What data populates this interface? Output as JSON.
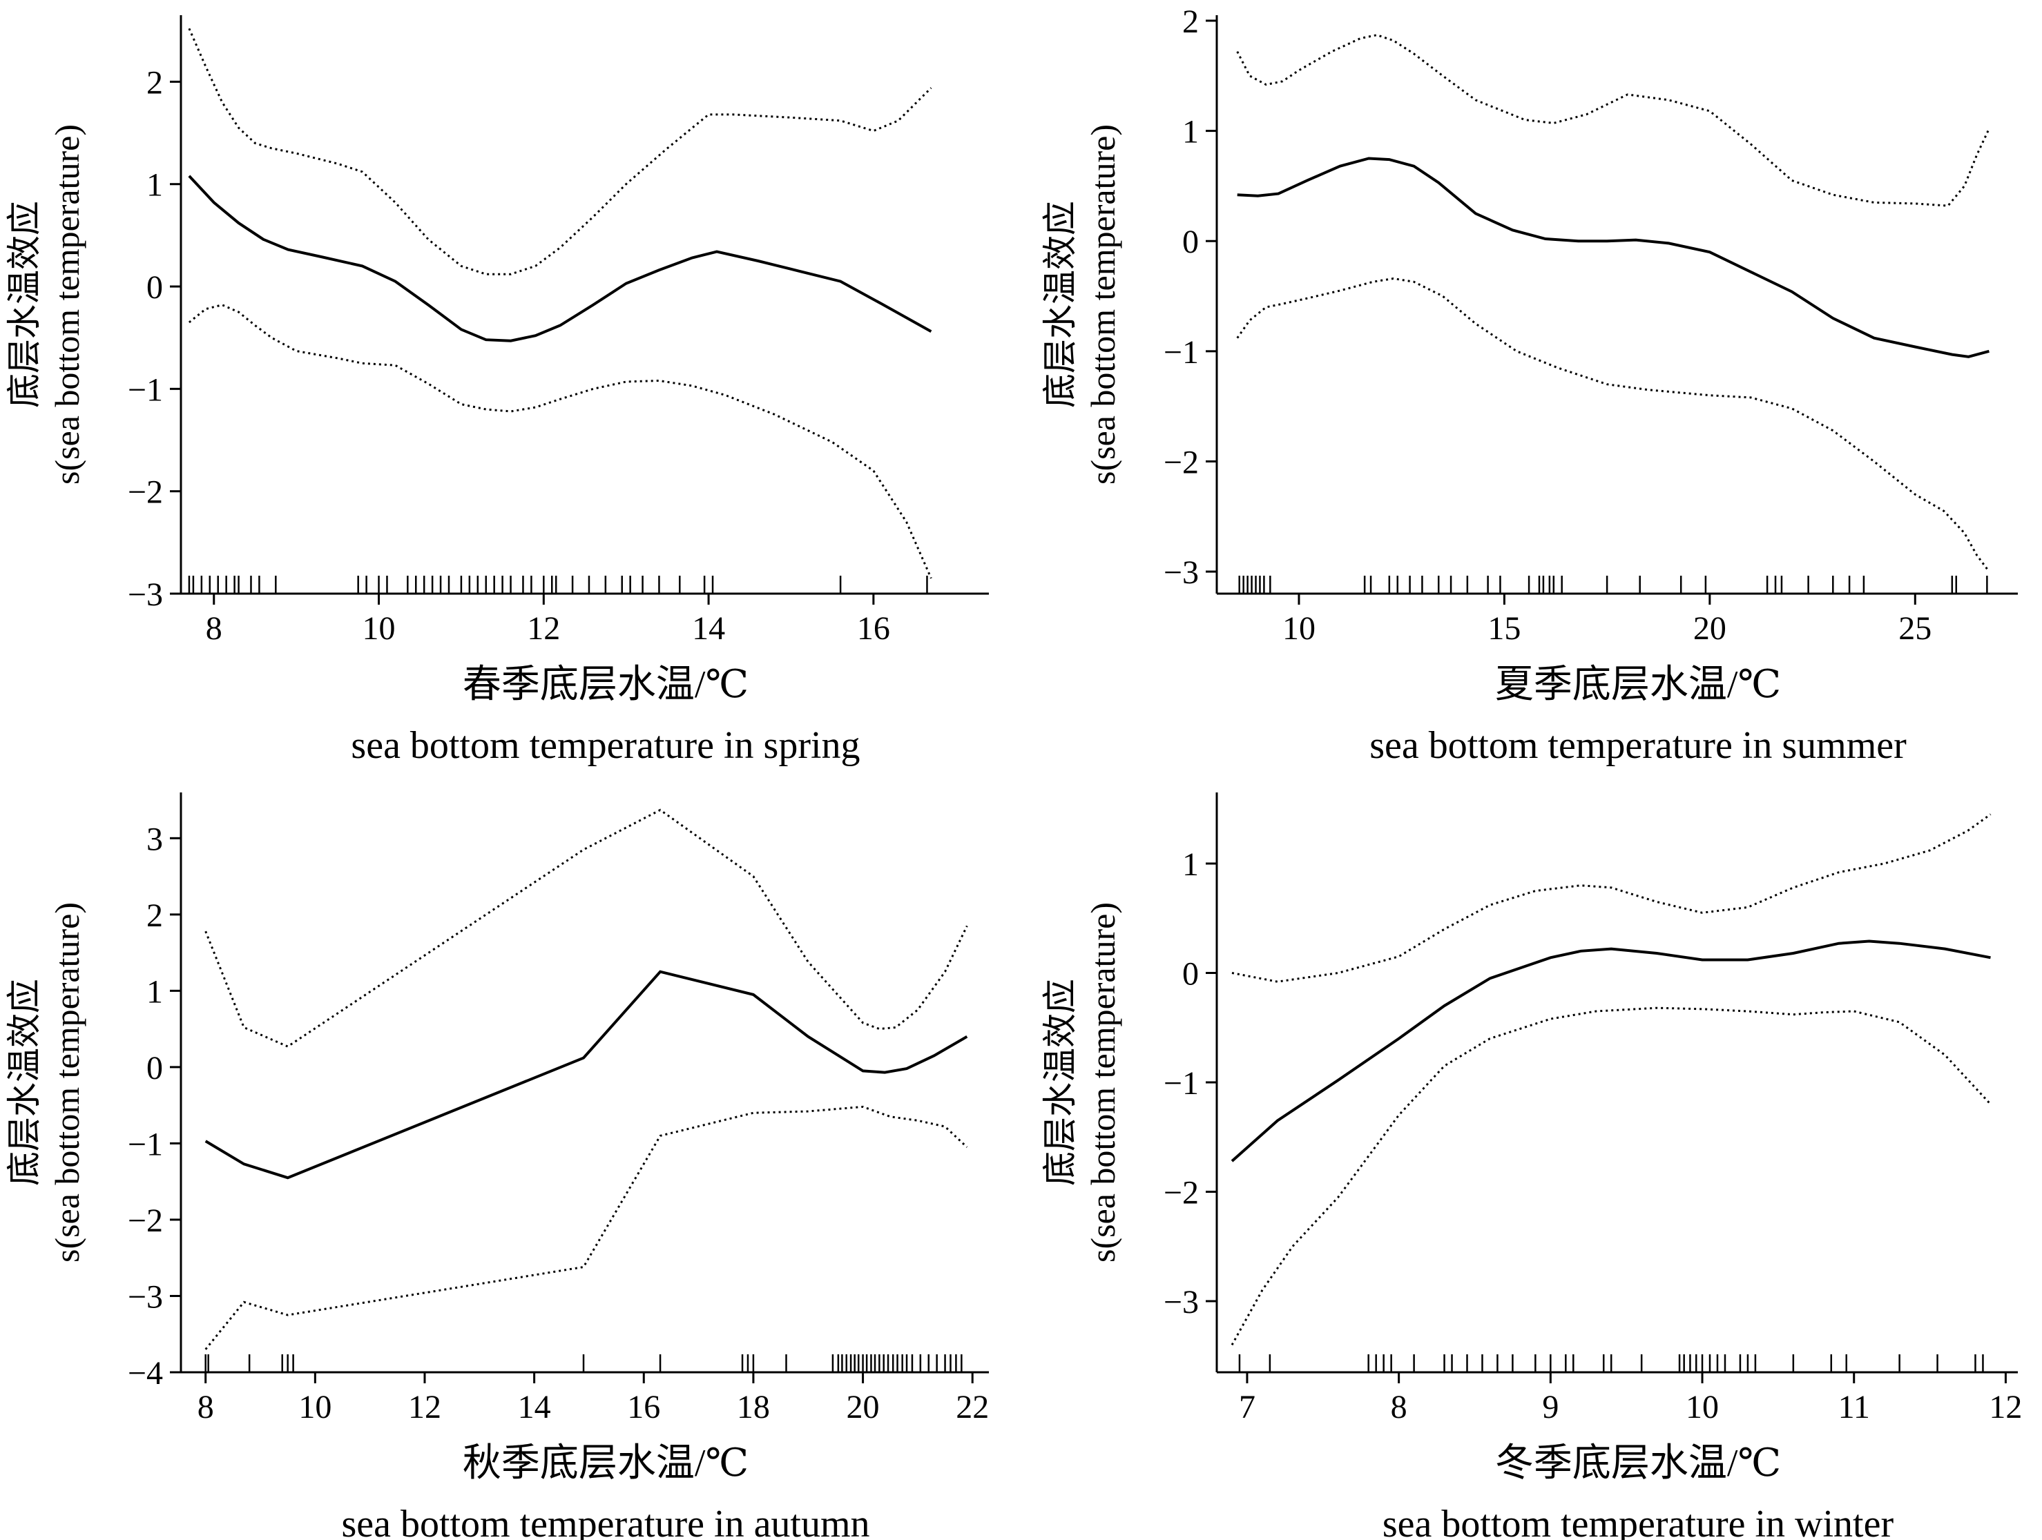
{
  "chart_data": [
    {
      "id": "spring",
      "type": "line",
      "xlabel_cn": "春季底层水温/℃",
      "xlabel_en": "sea bottom temperature in spring",
      "ylabel_cn": "底层水温效应",
      "ylabel_en": "s(sea bottom temperature)",
      "xlim": [
        7.6,
        17.4
      ],
      "ylim": [
        -3,
        2.65
      ],
      "xticks": [
        8,
        10,
        12,
        14,
        16
      ],
      "yticks": [
        -3,
        -2,
        -1,
        0,
        1,
        2
      ],
      "rug": [
        7.7,
        7.75,
        7.85,
        7.95,
        8.05,
        8.15,
        8.25,
        8.3,
        8.45,
        8.55,
        8.75,
        9.75,
        9.85,
        10.0,
        10.1,
        10.35,
        10.45,
        10.55,
        10.65,
        10.75,
        10.85,
        11.0,
        11.1,
        11.2,
        11.3,
        11.4,
        11.5,
        11.6,
        11.75,
        11.85,
        12.0,
        12.1,
        12.15,
        12.35,
        12.55,
        12.75,
        12.95,
        13.05,
        13.2,
        13.4,
        13.65,
        13.95,
        14.05,
        15.6,
        16.65
      ],
      "series": [
        {
          "style": "solid",
          "x": [
            7.7,
            8.0,
            8.3,
            8.6,
            8.9,
            9.3,
            9.8,
            10.2,
            10.6,
            11.0,
            11.3,
            11.6,
            11.9,
            12.2,
            12.6,
            13.0,
            13.4,
            13.8,
            14.1,
            14.6,
            15.1,
            15.6,
            16.1,
            16.7
          ],
          "y": [
            1.08,
            0.82,
            0.62,
            0.46,
            0.36,
            0.29,
            0.2,
            0.05,
            -0.18,
            -0.42,
            -0.52,
            -0.53,
            -0.48,
            -0.38,
            -0.18,
            0.03,
            0.16,
            0.28,
            0.34,
            0.25,
            0.15,
            0.05,
            -0.17,
            -0.44
          ]
        },
        {
          "style": "dotted",
          "x": [
            7.7,
            7.9,
            8.1,
            8.3,
            8.5,
            8.7,
            9.0,
            9.5,
            9.8,
            10.2,
            10.6,
            11.0,
            11.3,
            11.6,
            11.9,
            12.2,
            12.6,
            13.0,
            13.5,
            14.0,
            14.3,
            15.0,
            15.6,
            16.0,
            16.3,
            16.7
          ],
          "y": [
            2.52,
            2.15,
            1.8,
            1.55,
            1.4,
            1.35,
            1.3,
            1.2,
            1.12,
            0.82,
            0.46,
            0.2,
            0.12,
            0.12,
            0.2,
            0.38,
            0.68,
            1.0,
            1.35,
            1.68,
            1.68,
            1.65,
            1.62,
            1.52,
            1.62,
            1.94
          ]
        },
        {
          "style": "dotted",
          "x": [
            7.7,
            7.9,
            8.1,
            8.3,
            8.5,
            8.7,
            9.0,
            9.5,
            9.8,
            10.2,
            10.6,
            11.0,
            11.3,
            11.6,
            11.9,
            12.2,
            12.6,
            13.0,
            13.4,
            13.8,
            14.2,
            14.8,
            15.5,
            16.0,
            16.4,
            16.7
          ],
          "y": [
            -0.35,
            -0.22,
            -0.18,
            -0.25,
            -0.38,
            -0.5,
            -0.63,
            -0.7,
            -0.75,
            -0.77,
            -0.95,
            -1.15,
            -1.2,
            -1.22,
            -1.18,
            -1.1,
            -1.0,
            -0.93,
            -0.92,
            -0.97,
            -1.06,
            -1.25,
            -1.52,
            -1.8,
            -2.3,
            -2.85
          ]
        }
      ]
    },
    {
      "id": "summer",
      "type": "line",
      "xlabel_cn": "夏季底层水温/℃",
      "xlabel_en": "sea bottom temperature in summer",
      "ylabel_cn": "底层水温效应",
      "ylabel_en": "s(sea bottom temperature)",
      "xlim": [
        8.0,
        27.5
      ],
      "ylim": [
        -3.2,
        2.05
      ],
      "xticks": [
        10,
        15,
        20,
        25
      ],
      "yticks": [
        -3,
        -2,
        -1,
        0,
        1,
        2
      ],
      "rug": [
        8.55,
        8.65,
        8.75,
        8.85,
        8.95,
        9.05,
        9.15,
        9.3,
        11.6,
        11.75,
        12.2,
        12.4,
        12.7,
        13.0,
        13.4,
        13.7,
        14.1,
        14.6,
        14.9,
        15.6,
        15.85,
        15.95,
        16.1,
        16.2,
        16.4,
        17.5,
        18.3,
        19.3,
        19.9,
        21.4,
        21.6,
        21.75,
        22.4,
        23.0,
        23.4,
        23.75,
        25.9,
        26.0,
        26.75
      ],
      "series": [
        {
          "style": "solid",
          "x": [
            8.5,
            9.0,
            9.5,
            10.2,
            11.0,
            11.7,
            12.2,
            12.8,
            13.4,
            14.3,
            15.2,
            16.0,
            16.8,
            17.5,
            18.2,
            19.0,
            20.0,
            21.0,
            22.0,
            23.0,
            24.0,
            25.0,
            25.9,
            26.3,
            26.8
          ],
          "y": [
            0.42,
            0.41,
            0.43,
            0.55,
            0.68,
            0.75,
            0.74,
            0.68,
            0.53,
            0.25,
            0.1,
            0.02,
            0.0,
            0.0,
            0.01,
            -0.02,
            -0.1,
            -0.28,
            -0.46,
            -0.7,
            -0.88,
            -0.96,
            -1.03,
            -1.05,
            -1.0
          ]
        },
        {
          "style": "dotted",
          "x": [
            8.5,
            8.8,
            9.2,
            9.6,
            10.0,
            10.8,
            11.5,
            11.9,
            12.3,
            12.8,
            13.5,
            14.3,
            15.5,
            16.2,
            17.0,
            18.0,
            19.0,
            20.0,
            21.0,
            22.0,
            23.0,
            24.0,
            25.0,
            25.8,
            26.2,
            26.5,
            26.8
          ],
          "y": [
            1.72,
            1.5,
            1.42,
            1.45,
            1.55,
            1.72,
            1.84,
            1.87,
            1.82,
            1.7,
            1.5,
            1.28,
            1.1,
            1.07,
            1.15,
            1.33,
            1.28,
            1.18,
            0.88,
            0.55,
            0.42,
            0.35,
            0.34,
            0.32,
            0.5,
            0.78,
            1.02
          ]
        },
        {
          "style": "dotted",
          "x": [
            8.5,
            8.8,
            9.2,
            9.6,
            10.2,
            11.0,
            11.8,
            12.3,
            12.8,
            13.5,
            14.3,
            15.3,
            16.3,
            17.5,
            18.5,
            20.0,
            21.0,
            22.0,
            23.0,
            24.0,
            25.0,
            25.7,
            26.2,
            26.5,
            26.8
          ],
          "y": [
            -0.88,
            -0.72,
            -0.6,
            -0.57,
            -0.52,
            -0.45,
            -0.37,
            -0.34,
            -0.37,
            -0.5,
            -0.75,
            -1.0,
            -1.15,
            -1.3,
            -1.35,
            -1.4,
            -1.42,
            -1.52,
            -1.72,
            -2.0,
            -2.3,
            -2.45,
            -2.65,
            -2.85,
            -3.0
          ]
        }
      ]
    },
    {
      "id": "autumn",
      "type": "line",
      "xlabel_cn": "秋季底层水温/℃",
      "xlabel_en": "sea bottom temperature in autumn",
      "ylabel_cn": "底层水温效应",
      "ylabel_en": "s(sea bottom temperature)",
      "xlim": [
        7.55,
        22.3
      ],
      "ylim": [
        -4.0,
        3.6
      ],
      "xticks": [
        8,
        10,
        12,
        14,
        16,
        18,
        20,
        22
      ],
      "yticks": [
        -4,
        -3,
        -2,
        -1,
        0,
        1,
        2,
        3
      ],
      "rug": [
        8.0,
        8.05,
        8.8,
        9.4,
        9.5,
        9.6,
        14.9,
        16.3,
        17.8,
        17.9,
        18.0,
        18.6,
        19.45,
        19.55,
        19.62,
        19.7,
        19.78,
        19.85,
        19.92,
        20.0,
        20.07,
        20.15,
        20.22,
        20.3,
        20.38,
        20.46,
        20.55,
        20.63,
        20.72,
        20.8,
        20.9,
        21.05,
        21.2,
        21.35,
        21.5,
        21.6,
        21.7,
        21.8
      ],
      "series": [
        {
          "style": "solid",
          "x": [
            8.0,
            8.7,
            9.5,
            14.9,
            16.3,
            18.0,
            19.0,
            20.0,
            20.4,
            20.8,
            21.3,
            21.9
          ],
          "y": [
            -0.97,
            -1.27,
            -1.45,
            0.12,
            1.25,
            0.95,
            0.4,
            -0.05,
            -0.07,
            -0.02,
            0.15,
            0.4
          ]
        },
        {
          "style": "dotted",
          "x": [
            8.0,
            8.7,
            9.5,
            14.9,
            16.3,
            18.0,
            19.0,
            20.0,
            20.3,
            20.6,
            21.0,
            21.5,
            21.9
          ],
          "y": [
            1.78,
            0.52,
            0.27,
            2.85,
            3.37,
            2.5,
            1.38,
            0.58,
            0.5,
            0.52,
            0.75,
            1.25,
            1.85
          ]
        },
        {
          "style": "dotted",
          "x": [
            8.0,
            8.7,
            9.5,
            14.9,
            16.3,
            18.0,
            19.0,
            20.0,
            20.5,
            21.0,
            21.5,
            21.9
          ],
          "y": [
            -3.7,
            -3.08,
            -3.25,
            -2.62,
            -0.9,
            -0.6,
            -0.58,
            -0.52,
            -0.65,
            -0.7,
            -0.78,
            -1.05
          ]
        }
      ]
    },
    {
      "id": "winter",
      "type": "line",
      "xlabel_cn": "冬季底层水温/℃",
      "xlabel_en": "sea bottom temperature in winter",
      "ylabel_cn": "底层水温效应",
      "ylabel_en": "s(sea bottom temperature)",
      "xlim": [
        6.8,
        12.08
      ],
      "ylim": [
        -3.65,
        1.65
      ],
      "xticks": [
        7,
        8,
        9,
        10,
        11,
        12
      ],
      "yticks": [
        -3,
        -2,
        -1,
        0,
        1
      ],
      "rug": [
        6.95,
        7.15,
        7.8,
        7.85,
        7.9,
        7.95,
        8.1,
        8.3,
        8.35,
        8.45,
        8.55,
        8.65,
        8.75,
        8.9,
        9.0,
        9.1,
        9.15,
        9.35,
        9.4,
        9.6,
        9.85,
        9.88,
        9.92,
        9.96,
        10.0,
        10.05,
        10.1,
        10.15,
        10.25,
        10.3,
        10.35,
        10.6,
        10.85,
        10.95,
        11.3,
        11.55,
        11.8,
        11.85
      ],
      "series": [
        {
          "style": "solid",
          "x": [
            6.9,
            7.2,
            7.6,
            8.0,
            8.3,
            8.6,
            9.0,
            9.2,
            9.4,
            9.7,
            10.0,
            10.3,
            10.6,
            10.9,
            11.1,
            11.3,
            11.6,
            11.9
          ],
          "y": [
            -1.72,
            -1.35,
            -0.98,
            -0.6,
            -0.3,
            -0.05,
            0.14,
            0.2,
            0.22,
            0.18,
            0.12,
            0.12,
            0.18,
            0.27,
            0.29,
            0.27,
            0.22,
            0.14
          ]
        },
        {
          "style": "dotted",
          "x": [
            6.9,
            7.2,
            7.6,
            8.0,
            8.3,
            8.6,
            8.9,
            9.2,
            9.4,
            9.7,
            10.0,
            10.3,
            10.6,
            10.9,
            11.2,
            11.5,
            11.75,
            11.9
          ],
          "y": [
            0.0,
            -0.08,
            0.0,
            0.15,
            0.4,
            0.62,
            0.75,
            0.8,
            0.78,
            0.65,
            0.55,
            0.6,
            0.78,
            0.92,
            1.0,
            1.12,
            1.3,
            1.45
          ]
        },
        {
          "style": "dotted",
          "x": [
            6.9,
            7.1,
            7.3,
            7.6,
            8.0,
            8.3,
            8.6,
            9.0,
            9.3,
            9.7,
            10.0,
            10.3,
            10.6,
            10.8,
            11.0,
            11.3,
            11.6,
            11.9
          ],
          "y": [
            -3.4,
            -2.9,
            -2.5,
            -2.05,
            -1.3,
            -0.85,
            -0.6,
            -0.42,
            -0.35,
            -0.32,
            -0.33,
            -0.35,
            -0.38,
            -0.36,
            -0.35,
            -0.45,
            -0.75,
            -1.2
          ]
        }
      ]
    }
  ]
}
